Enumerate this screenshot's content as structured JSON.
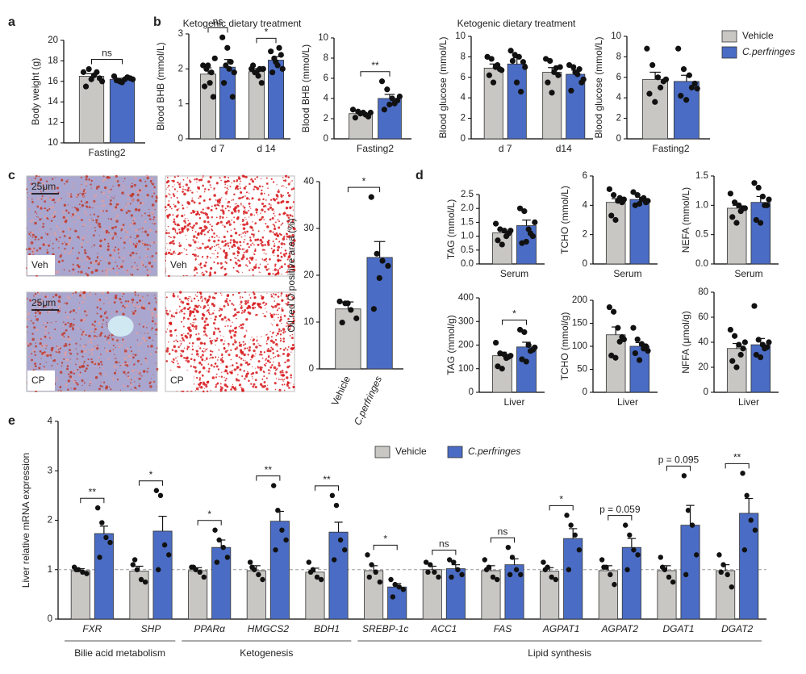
{
  "panels": [
    "a",
    "b",
    "c",
    "d",
    "e"
  ],
  "images": [
    {
      "label": "Veh",
      "scale": "25μm"
    },
    {
      "label": "Veh"
    },
    {
      "label": "CP",
      "scale": "25μm"
    },
    {
      "label": "CP"
    }
  ],
  "chart_data": [
    {
      "type": "bar",
      "ylabel": "Body weight (g)",
      "categories": [
        "Fasting2"
      ],
      "ylim": [
        10,
        20
      ],
      "yticks": [
        10,
        12,
        14,
        16,
        18,
        20
      ],
      "significance": [
        "ns"
      ],
      "series": [
        {
          "name": "Vehicle",
          "color": "#c9c7c4",
          "values": [
            16.5
          ],
          "errors": [
            0.25
          ],
          "points": [
            [
              16.9,
              17.2,
              16.6,
              16.3,
              15.5,
              16.2,
              16.9,
              16.0
            ]
          ]
        },
        {
          "name": "C.perfringes",
          "color": "#4a6cc4",
          "values": [
            16.2
          ],
          "errors": [
            0.1
          ],
          "points": [
            [
              16.5,
              16.0,
              16.2,
              16.3,
              16.1,
              15.9,
              16.4,
              16.2
            ]
          ]
        }
      ]
    },
    {
      "type": "bar",
      "title": "Ketogenic dietary treatment",
      "ylabel": "Blood BHB (mmol/L)",
      "categories": [
        "d 7",
        "d 14"
      ],
      "ylim": [
        0,
        3
      ],
      "yticks": [
        0,
        1,
        2,
        3
      ],
      "significance": [
        "ns",
        "*"
      ],
      "series": [
        {
          "name": "Vehicle",
          "color": "#c9c7c4",
          "values": [
            1.85,
            1.92
          ],
          "errors": [
            0.18,
            0.09
          ],
          "points": [
            [
              2.1,
              2.0,
              1.6,
              1.2,
              1.5,
              2.1,
              1.9,
              2.3
            ],
            [
              2.0,
              1.9,
              1.8,
              1.6,
              2.1,
              1.9,
              2.0,
              2.0
            ]
          ]
        },
        {
          "name": "C.perfringes",
          "color": "#4a6cc4",
          "values": [
            2.05,
            2.25
          ],
          "errors": [
            0.22,
            0.1
          ],
          "points": [
            [
              2.9,
              2.1,
              2.0,
              1.2,
              1.6,
              2.6,
              2.2,
              1.9
            ],
            [
              2.5,
              2.3,
              2.1,
              2.4,
              1.9,
              2.2,
              2.6,
              2.0
            ]
          ]
        }
      ]
    },
    {
      "type": "bar",
      "ylabel": "Blood BHB (mmol/L)",
      "categories": [
        "Fasting2"
      ],
      "ylim": [
        0,
        10
      ],
      "yticks": [
        0,
        2,
        4,
        6,
        8,
        10
      ],
      "significance": [
        "**"
      ],
      "series": [
        {
          "name": "Vehicle",
          "color": "#c9c7c4",
          "values": [
            2.5
          ],
          "errors": [
            0.2
          ],
          "points": [
            [
              2.9,
              2.7,
              2.6,
              2.2,
              2.1,
              2.5,
              2.4,
              2.6
            ]
          ]
        },
        {
          "name": "C.perfringes",
          "color": "#4a6cc4",
          "values": [
            4.0
          ],
          "errors": [
            0.4
          ],
          "points": [
            [
              5.7,
              4.9,
              4.0,
              3.8,
              2.9,
              3.4,
              3.5,
              4.2
            ]
          ]
        }
      ]
    },
    {
      "type": "bar",
      "title": "Ketogenic dietary treatment",
      "ylabel": "Blood glucose (mmol/L)",
      "categories": [
        "d 7",
        "d14"
      ],
      "ylim": [
        0,
        10
      ],
      "yticks": [
        0,
        2,
        4,
        6,
        8,
        10
      ],
      "series": [
        {
          "name": "Vehicle",
          "color": "#c9c7c4",
          "values": [
            6.9,
            6.5
          ],
          "errors": [
            0.4,
            0.45
          ],
          "points": [
            [
              8.0,
              7.8,
              7.0,
              6.8,
              6.2,
              5.5,
              7.2,
              6.7
            ],
            [
              7.8,
              7.6,
              6.5,
              6.2,
              5.5,
              4.5,
              6.9,
              7.0
            ]
          ]
        },
        {
          "name": "C.perfringes",
          "color": "#4a6cc4",
          "values": [
            7.3,
            6.3
          ],
          "errors": [
            0.6,
            0.4
          ],
          "points": [
            [
              8.6,
              8.2,
              8.0,
              7.5,
              7.6,
              5.5,
              4.6,
              7.0
            ],
            [
              7.2,
              7.0,
              6.3,
              5.5,
              4.7,
              6.5,
              6.8,
              5.8
            ]
          ]
        }
      ]
    },
    {
      "type": "bar",
      "ylabel": "Blood glucose (mmol/L)",
      "categories": [
        "Fasting2"
      ],
      "ylim": [
        0,
        10
      ],
      "yticks": [
        0,
        2,
        4,
        6,
        8,
        10
      ],
      "legend": true,
      "series": [
        {
          "name": "Vehicle",
          "color": "#c9c7c4",
          "values": [
            5.8
          ],
          "errors": [
            0.7
          ],
          "points": [
            [
              8.8,
              7.2,
              6.0,
              5.6,
              4.4,
              3.6,
              5.0,
              5.8
            ]
          ]
        },
        {
          "name": "C.perfringes",
          "color": "#4a6cc4",
          "values": [
            5.6
          ],
          "errors": [
            0.6
          ],
          "points": [
            [
              8.8,
              6.8,
              6.2,
              5.4,
              4.2,
              3.8,
              5.0,
              4.9
            ]
          ]
        }
      ]
    },
    {
      "type": "bar",
      "ylabel": "Oil red O positive area (%)",
      "ylim": [
        0,
        40
      ],
      "yticks": [
        0,
        10,
        20,
        30,
        40
      ],
      "significance": [
        "*"
      ],
      "series": [
        {
          "name": "Vehicle",
          "color": "#c9c7c4",
          "values": [
            12.8
          ],
          "errors": [
            1.5
          ],
          "points": [
            [
              14.4,
              14.0,
              12.6,
              10.8,
              9.9,
              14.0
            ]
          ]
        },
        {
          "name": "C.perfringes",
          "color": "#4a6cc4",
          "values": [
            23.8
          ],
          "errors": [
            3.4
          ],
          "points": [
            [
              36.7,
              24.6,
              23.1,
              22.0,
              12.8,
              19.4
            ]
          ]
        }
      ]
    },
    {
      "type": "bar",
      "ylabel": "TAG (mmol/L)",
      "categories": [
        "Serum"
      ],
      "ylim": [
        0,
        2.5
      ],
      "yticks": [
        {
          "value": 0,
          "label": "0.0"
        },
        {
          "value": 0.5,
          "label": "0.5"
        },
        {
          "value": 1,
          "label": "1.0"
        },
        {
          "value": 1.5,
          "label": "1.5"
        },
        {
          "value": 2,
          "label": "2.0"
        },
        {
          "value": 2.5,
          "label": "2.5"
        }
      ],
      "series": [
        {
          "name": "Vehicle",
          "color": "#c9c7c4",
          "values": [
            1.12
          ],
          "errors": [
            0.1
          ],
          "points": [
            [
              1.45,
              1.25,
              1.2,
              1.1,
              0.85,
              0.7,
              1.0,
              1.2
            ]
          ]
        },
        {
          "name": "C.perfringes",
          "color": "#4a6cc4",
          "values": [
            1.38
          ],
          "errors": [
            0.2
          ],
          "points": [
            [
              2.0,
              1.9,
              1.25,
              1.0,
              0.75,
              0.8,
              1.1,
              1.5
            ]
          ]
        }
      ]
    },
    {
      "type": "bar",
      "ylabel": "TCHO (mmol/L)",
      "categories": [
        "Serum"
      ],
      "ylim": [
        0,
        6
      ],
      "yticks": [
        0,
        2,
        4,
        6
      ],
      "series": [
        {
          "name": "Vehicle",
          "color": "#c9c7c4",
          "values": [
            4.2
          ],
          "errors": [
            0.25
          ],
          "points": [
            [
              5.1,
              4.7,
              4.3,
              4.2,
              3.3,
              3.0,
              4.5,
              4.4
            ]
          ]
        },
        {
          "name": "C.perfringes",
          "color": "#4a6cc4",
          "values": [
            4.4
          ],
          "errors": [
            0.15
          ],
          "points": [
            [
              4.9,
              4.7,
              4.4,
              4.2,
              4.0,
              4.1,
              4.5,
              4.3
            ]
          ]
        }
      ]
    },
    {
      "type": "bar",
      "ylabel": "NEFA (mmol/L)",
      "categories": [
        "Serum"
      ],
      "ylim": [
        0,
        1.5
      ],
      "yticks": [
        {
          "value": 0,
          "label": "0.0"
        },
        {
          "value": 0.5,
          "label": "0.5"
        },
        {
          "value": 1,
          "label": "1.0"
        },
        {
          "value": 1.5,
          "label": "1.5"
        }
      ],
      "series": [
        {
          "name": "Vehicle",
          "color": "#c9c7c4",
          "values": [
            0.95
          ],
          "errors": [
            0.05
          ],
          "points": [
            [
              1.2,
              1.05,
              1.0,
              0.95,
              0.8,
              0.7,
              0.9,
              0.95
            ]
          ]
        },
        {
          "name": "C.perfringes",
          "color": "#4a6cc4",
          "values": [
            1.05
          ],
          "errors": [
            0.1
          ],
          "points": [
            [
              1.38,
              1.3,
              1.15,
              1.0,
              0.75,
              0.7,
              1.0,
              1.1
            ]
          ]
        }
      ]
    },
    {
      "type": "bar",
      "ylabel": "TAG (mmol/g)",
      "categories": [
        "Liver"
      ],
      "ylim": [
        0,
        400
      ],
      "yticks": [
        0,
        100,
        200,
        300,
        400
      ],
      "significance": [
        "*"
      ],
      "series": [
        {
          "name": "Vehicle",
          "color": "#c9c7c4",
          "values": [
            155
          ],
          "errors": [
            15
          ],
          "points": [
            [
              210,
              165,
              160,
              150,
              110,
              100,
              145,
              155
            ]
          ]
        },
        {
          "name": "C.perfringes",
          "color": "#4a6cc4",
          "values": [
            192
          ],
          "errors": [
            20
          ],
          "points": [
            [
              265,
              255,
              200,
              180,
              140,
              130,
              175,
              190
            ]
          ]
        }
      ]
    },
    {
      "type": "bar",
      "ylabel": "TCHO (mmol/g)",
      "categories": [
        "Liver"
      ],
      "ylim": [
        0,
        200
      ],
      "yticks": [
        0,
        50,
        100,
        150,
        200
      ],
      "series": [
        {
          "name": "Vehicle",
          "color": "#c9c7c4",
          "values": [
            125
          ],
          "errors": [
            17
          ],
          "points": [
            [
              185,
              175,
              140,
              120,
              80,
              75,
              110,
              115
            ]
          ]
        },
        {
          "name": "C.perfringes",
          "color": "#4a6cc4",
          "values": [
            100
          ],
          "errors": [
            8
          ],
          "points": [
            [
              140,
              115,
              105,
              100,
              85,
              70,
              95,
              90
            ]
          ]
        }
      ]
    },
    {
      "type": "bar",
      "ylabel": "NFFA (μmol/g)",
      "categories": [
        "Liver"
      ],
      "ylim": [
        0,
        80
      ],
      "yticks": [
        0,
        20,
        40,
        60,
        80
      ],
      "series": [
        {
          "name": "Vehicle",
          "color": "#c9c7c4",
          "values": [
            35
          ],
          "errors": [
            4
          ],
          "points": [
            [
              50,
              45,
              38,
              35,
              25,
              20,
              30,
              40
            ]
          ]
        },
        {
          "name": "C.perfringes",
          "color": "#4a6cc4",
          "values": [
            38
          ],
          "errors": [
            5
          ],
          "points": [
            [
              69,
              42,
              38,
              36,
              30,
              28,
              35,
              40
            ]
          ]
        }
      ]
    },
    {
      "type": "bar",
      "ylabel": "Liver relative mRNA expression",
      "italic_categories": true,
      "legend": true,
      "reference_line": 1,
      "categories": [
        "FXR",
        "SHP",
        "PPARα",
        "HMGCS2",
        "BDH1",
        "SREBP-1c",
        "ACC1",
        "FAS",
        "AGPAT1",
        "AGPAT2",
        "DGAT1",
        "DGAT2"
      ],
      "groups": [
        "Bilie acid metabolism",
        "Ketogenesis",
        "Lipid synthesis"
      ],
      "ylim": [
        0,
        4
      ],
      "yticks": [
        0,
        1,
        2,
        3,
        4
      ],
      "significance": [
        "**",
        "*",
        "*",
        "**",
        "**",
        "*",
        "ns",
        "ns",
        "*",
        "p = 0.059",
        "p = 0.095",
        "**"
      ],
      "series": [
        {
          "name": "Vehicle",
          "color": "#c9c7c4",
          "values": [
            0.98,
            0.97,
            0.98,
            0.98,
            0.95,
            0.98,
            1.0,
            0.98,
            0.97,
            0.98,
            0.98,
            0.98
          ],
          "errors": [
            0.04,
            0.1,
            0.06,
            0.1,
            0.08,
            0.1,
            0.07,
            0.1,
            0.07,
            0.1,
            0.1,
            0.12
          ],
          "points": [
            [
              1.05,
              1.0,
              0.95,
              0.92,
              1.0
            ],
            [
              1.1,
              1.0,
              0.8,
              0.75,
              1.2
            ],
            [
              1.05,
              1.0,
              0.95,
              0.85,
              1.05
            ],
            [
              1.15,
              1.0,
              0.9,
              0.8,
              1.05
            ],
            [
              1.15,
              1.0,
              0.85,
              0.8,
              0.95
            ],
            [
              1.3,
              1.1,
              0.95,
              0.75,
              0.85
            ],
            [
              1.15,
              1.1,
              0.95,
              0.85,
              0.95
            ],
            [
              1.2,
              1.05,
              0.85,
              0.8,
              1.0
            ],
            [
              1.15,
              1.05,
              0.85,
              0.8,
              1.0
            ],
            [
              1.2,
              1.05,
              0.9,
              0.7,
              1.05
            ],
            [
              1.25,
              1.0,
              0.85,
              0.75,
              1.05
            ],
            [
              1.3,
              1.1,
              0.9,
              0.65,
              0.95
            ]
          ]
        },
        {
          "name": "C.perfringes",
          "color": "#4a6cc4",
          "values": [
            1.73,
            1.78,
            1.45,
            1.98,
            1.76,
            0.65,
            1.02,
            1.1,
            1.63,
            1.45,
            1.9,
            2.14
          ],
          "errors": [
            0.15,
            0.3,
            0.15,
            0.2,
            0.2,
            0.07,
            0.08,
            0.12,
            0.2,
            0.18,
            0.4,
            0.3
          ],
          "points": [
            [
              2.25,
              1.95,
              1.65,
              1.55,
              1.25
            ],
            [
              2.6,
              2.5,
              1.5,
              1.3,
              1.0
            ],
            [
              1.8,
              1.6,
              1.45,
              1.25,
              1.15
            ],
            [
              2.7,
              2.2,
              1.8,
              1.6,
              1.4
            ],
            [
              2.5,
              2.3,
              1.6,
              1.4,
              1.2
            ],
            [
              0.8,
              0.7,
              0.65,
              0.6,
              0.45
            ],
            [
              1.2,
              1.15,
              1.0,
              0.9,
              0.85
            ],
            [
              1.45,
              1.25,
              1.0,
              0.9,
              0.9
            ],
            [
              2.1,
              1.9,
              1.7,
              1.4,
              1.0
            ],
            [
              1.9,
              1.7,
              1.4,
              1.3,
              1.0
            ],
            [
              2.9,
              2.2,
              1.9,
              1.3,
              0.9
            ],
            [
              2.95,
              2.5,
              2.0,
              1.8,
              1.4
            ]
          ]
        }
      ]
    }
  ]
}
